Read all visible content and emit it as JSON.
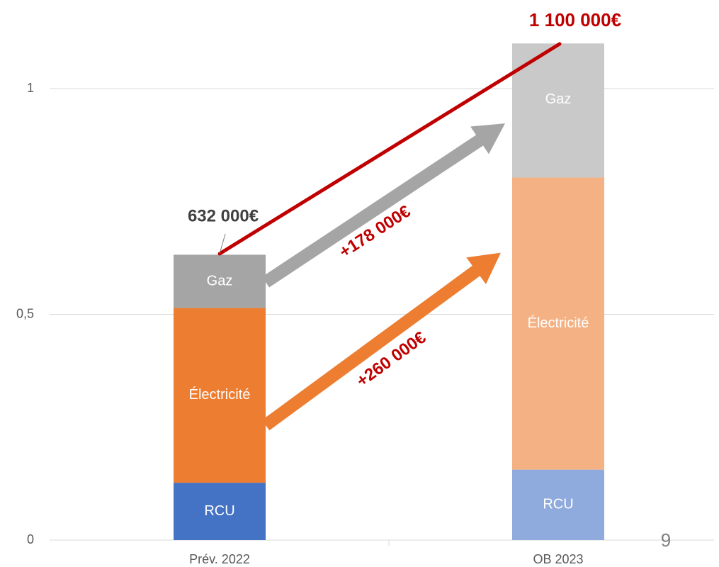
{
  "chart_data": {
    "type": "bar",
    "stacked": true,
    "categories": [
      "Prév. 2022",
      "OB 2023"
    ],
    "series": [
      {
        "name": "RCU",
        "colors": [
          "#4472c4",
          "#8faadc"
        ],
        "values": [
          0.127,
          0.156
        ]
      },
      {
        "name": "Électricité",
        "colors": [
          "#ed7d31",
          "#f4b183"
        ],
        "values": [
          0.387,
          0.647
        ]
      },
      {
        "name": "Gaz",
        "colors": [
          "#a5a5a5",
          "#c9c9c9"
        ],
        "values": [
          0.118,
          0.297
        ]
      }
    ],
    "ylim": [
      0,
      1.2
    ],
    "yticks": [
      0,
      {
        "value": 0.5,
        "label": "0,5"
      },
      1
    ],
    "grid": true,
    "annotations": {
      "total_2022": "632 000€",
      "total_2023": "1 100 000€",
      "gaz_delta": "+178 000€",
      "elec_delta": "+260 000€",
      "page_number": "9"
    }
  }
}
